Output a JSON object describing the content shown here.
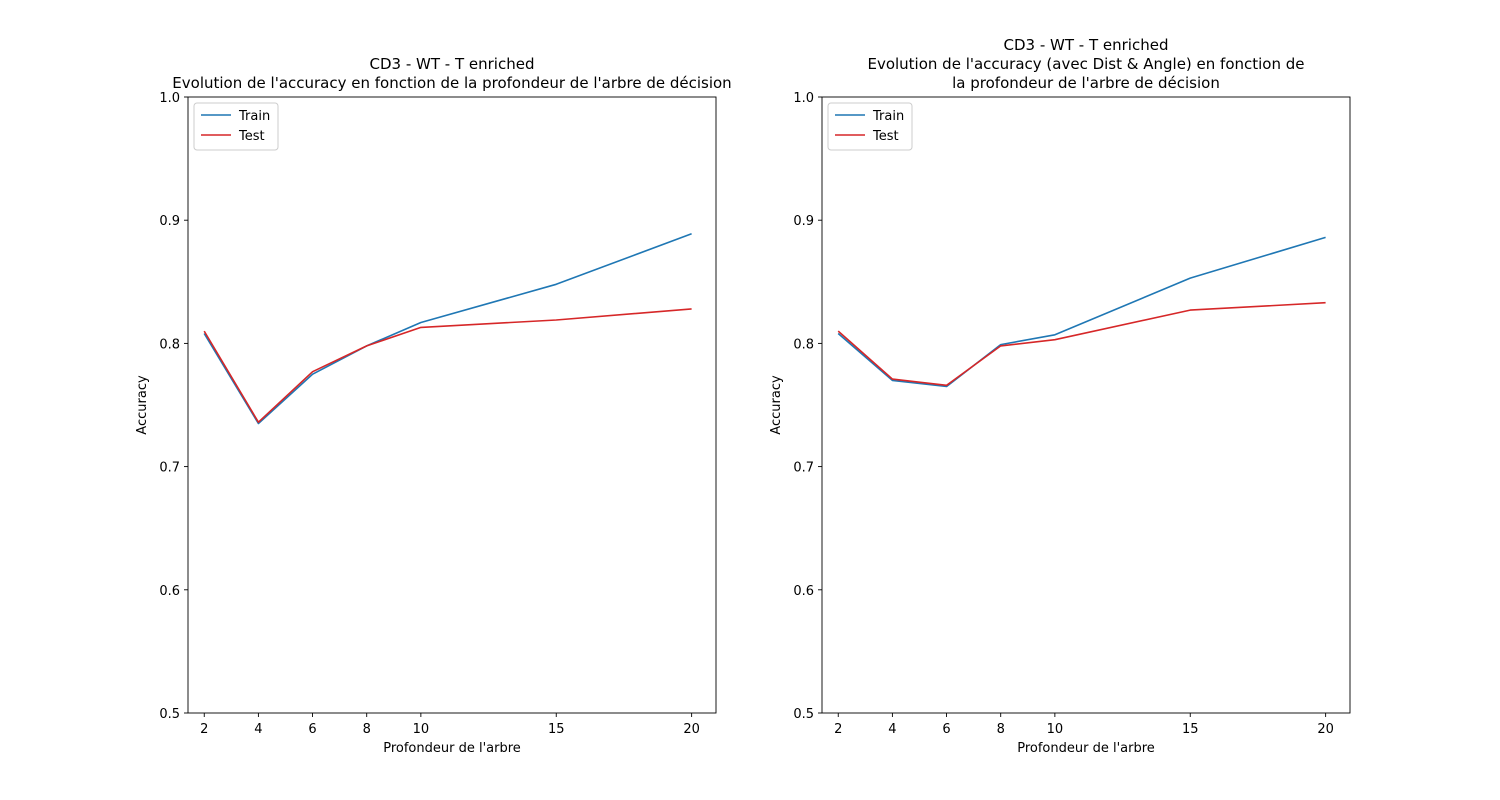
{
  "chart_data": [
    {
      "type": "line",
      "title_lines": [
        "CD3 - WT - T enriched",
        "Evolution de l'accuracy en fonction de la profondeur de l'arbre de décision"
      ],
      "xlabel": "Profondeur de l'arbre",
      "ylabel": "Accuracy",
      "x": [
        2,
        4,
        6,
        8,
        10,
        15,
        20
      ],
      "xlim": [
        1.4,
        20.9
      ],
      "ylim": [
        0.5,
        1.0
      ],
      "x_ticks": [
        2,
        4,
        6,
        8,
        10,
        15,
        20
      ],
      "y_ticks": [
        0.5,
        0.6,
        0.7,
        0.8,
        0.9,
        1.0
      ],
      "y_tick_labels": [
        "0.5",
        "0.6",
        "0.7",
        "0.8",
        "0.9",
        "1.0"
      ],
      "grid": false,
      "legend_position": "top-left",
      "series": [
        {
          "name": "Train",
          "color": "#1f77b4",
          "values": [
            0.808,
            0.735,
            0.775,
            0.798,
            0.817,
            0.848,
            0.889
          ]
        },
        {
          "name": "Test",
          "color": "#d62728",
          "values": [
            0.81,
            0.736,
            0.777,
            0.798,
            0.813,
            0.819,
            0.828
          ]
        }
      ]
    },
    {
      "type": "line",
      "title_lines": [
        "CD3 - WT - T enriched",
        "Evolution de l'accuracy (avec Dist & Angle) en fonction de",
        "la profondeur de l'arbre de décision"
      ],
      "xlabel": "Profondeur de l'arbre",
      "ylabel": "Accuracy",
      "x": [
        2,
        4,
        6,
        8,
        10,
        15,
        20
      ],
      "xlim": [
        1.4,
        20.9
      ],
      "ylim": [
        0.5,
        1.0
      ],
      "x_ticks": [
        2,
        4,
        6,
        8,
        10,
        15,
        20
      ],
      "y_ticks": [
        0.5,
        0.6,
        0.7,
        0.8,
        0.9,
        1.0
      ],
      "y_tick_labels": [
        "0.5",
        "0.6",
        "0.7",
        "0.8",
        "0.9",
        "1.0"
      ],
      "grid": false,
      "legend_position": "top-left",
      "series": [
        {
          "name": "Train",
          "color": "#1f77b4",
          "values": [
            0.808,
            0.77,
            0.765,
            0.799,
            0.807,
            0.853,
            0.886
          ]
        },
        {
          "name": "Test",
          "color": "#d62728",
          "values": [
            0.81,
            0.771,
            0.766,
            0.798,
            0.803,
            0.827,
            0.833
          ]
        }
      ]
    }
  ]
}
